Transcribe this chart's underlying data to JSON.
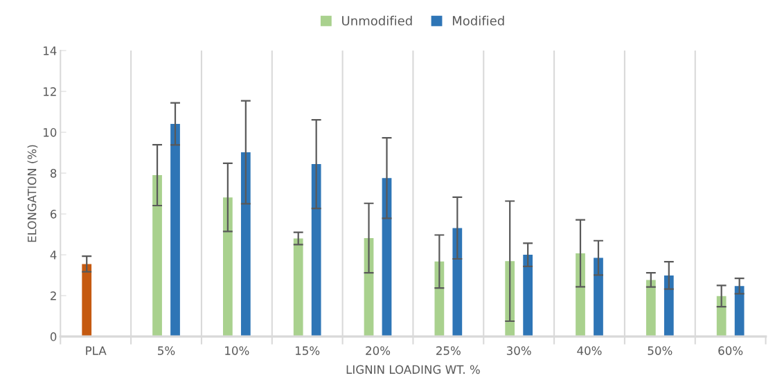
{
  "chart_data": {
    "type": "bar",
    "xlabel": "LIGNIN LOADING WT. %",
    "ylabel": "ELONGATION (%)",
    "categories": [
      "PLA",
      "5%",
      "10%",
      "15%",
      "20%",
      "25%",
      "30%",
      "40%",
      "50%",
      "60%"
    ],
    "series": [
      {
        "name": "Unmodified",
        "color": "#a9d18e",
        "colors": [
          "#c55a11",
          "#a9d18e",
          "#a9d18e",
          "#a9d18e",
          "#a9d18e",
          "#a9d18e",
          "#a9d18e",
          "#a9d18e",
          "#a9d18e",
          "#a9d18e"
        ],
        "values": [
          3.55,
          7.9,
          6.81,
          4.8,
          4.82,
          3.67,
          3.69,
          4.07,
          2.77,
          1.98
        ],
        "errors": [
          0.38,
          1.49,
          1.67,
          0.3,
          1.7,
          1.3,
          2.94,
          1.64,
          0.35,
          0.52
        ]
      },
      {
        "name": "Modified",
        "color": "#2e75b6",
        "values": [
          null,
          10.41,
          9.02,
          8.44,
          7.76,
          5.31,
          4.0,
          3.85,
          2.99,
          2.47
        ],
        "errors": [
          null,
          1.03,
          2.52,
          2.17,
          1.97,
          1.51,
          0.57,
          0.84,
          0.67,
          0.38
        ]
      }
    ],
    "ylim": [
      0,
      14
    ],
    "yticks": [
      0,
      2,
      4,
      6,
      8,
      10,
      12,
      14
    ],
    "grid": "x",
    "legend": "top"
  }
}
